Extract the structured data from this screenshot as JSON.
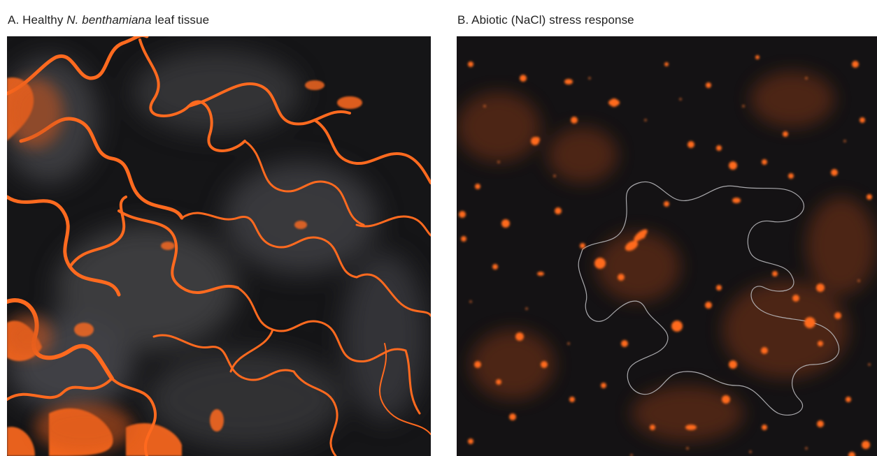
{
  "panels": [
    {
      "title_prefix": "A. Healthy ",
      "title_species": "N. benthamiana",
      "title_suffix": " leaf tissue",
      "image_description_icon": "confocal-micrograph-healthy-leaf-icon"
    },
    {
      "title": "B. Abiotic (NaCl) stress response",
      "image_description_icon": "confocal-micrograph-stressed-leaf-icon"
    }
  ],
  "colors": {
    "background": "#111113",
    "fluorescence": "#ff6a1f",
    "fluorescence_dim": "#b44a18",
    "gray_haze": "#5a5a5e",
    "outline": "#b9b9bc"
  }
}
